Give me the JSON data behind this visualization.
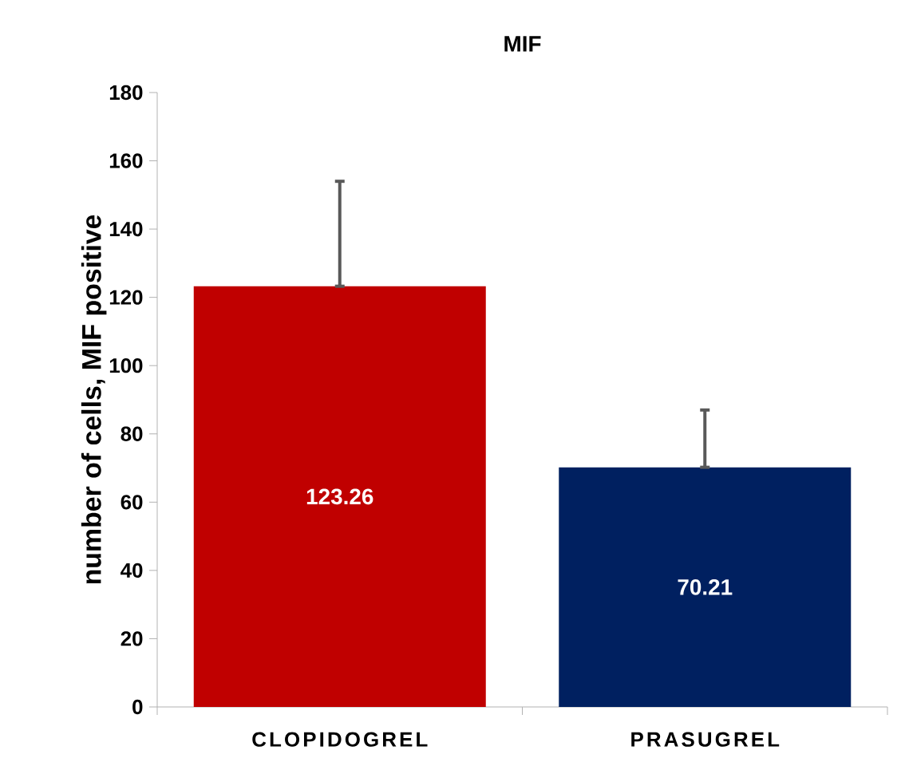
{
  "chart_data": {
    "type": "bar",
    "title": "MIF",
    "ylabel": "number of cells, MIF positive",
    "categories": [
      "CLOPIDOGREL",
      "PRASUGREL"
    ],
    "values": [
      123.26,
      70.21
    ],
    "colors": [
      "#c00000",
      "#002060"
    ],
    "errors": [
      [
        123.26,
        154
      ],
      [
        70.21,
        87
      ]
    ],
    "data_labels": true,
    "ylim": [
      0,
      180
    ],
    "yticks": [
      0,
      20,
      40,
      60,
      80,
      100,
      120,
      140,
      160,
      180
    ]
  }
}
